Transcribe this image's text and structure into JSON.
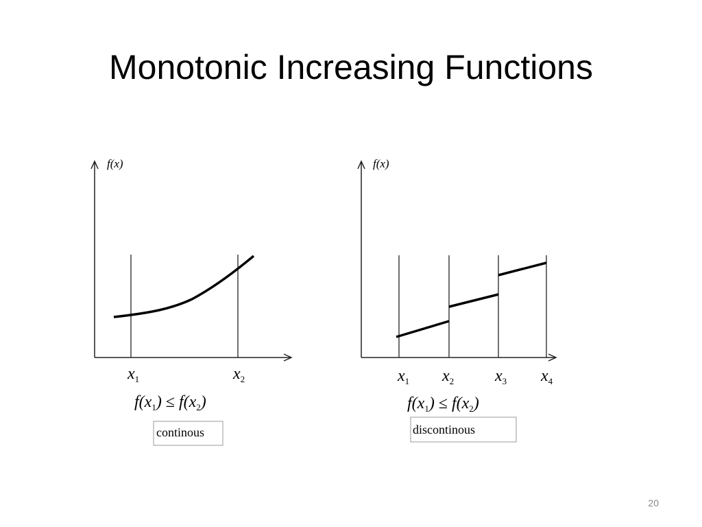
{
  "title": "Monotonic Increasing Functions",
  "diagrams": [
    {
      "y_label": "f(x)",
      "x_labels": [
        {
          "var": "x",
          "sub": "1"
        },
        {
          "var": "x",
          "sub": "2"
        }
      ],
      "inequality": [
        {
          "text": "f(x"
        },
        {
          "sub": "1"
        },
        {
          "text": ") ≤ f(x"
        },
        {
          "sub": "2"
        },
        {
          "text": ")"
        }
      ],
      "caption": "continous"
    },
    {
      "y_label": "f(x)",
      "x_labels": [
        {
          "var": "x",
          "sub": "1"
        },
        {
          "var": "x",
          "sub": "2"
        },
        {
          "var": "x",
          "sub": "3"
        },
        {
          "var": "x",
          "sub": "4"
        }
      ],
      "inequality": [
        {
          "text": "f(x"
        },
        {
          "sub": "1"
        },
        {
          "text": ") ≤ f(x"
        },
        {
          "sub": "2"
        },
        {
          "text": ")"
        }
      ],
      "caption": "discontinous"
    }
  ],
  "page_number": "20"
}
